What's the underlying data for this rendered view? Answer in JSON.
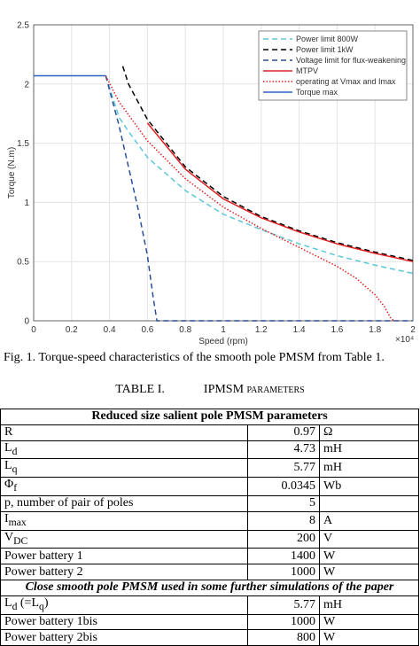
{
  "figure": {
    "ylabel": "Torque (N.m)",
    "xlabel": "Speed (rpm)",
    "x_multiplier": "×10⁴",
    "xlim": [
      0,
      2
    ],
    "ylim": [
      0,
      2.5
    ],
    "xticks": [
      0,
      0.2,
      0.4,
      0.6,
      0.8,
      1,
      1.2,
      1.4,
      1.6,
      1.8,
      2
    ],
    "yticks": [
      0,
      0.5,
      1,
      1.5,
      2,
      2.5
    ],
    "grid": true,
    "series": [
      {
        "name": "Power limit 800W",
        "color": "#5bc8d8",
        "dash": "6,4",
        "x": [
          0.38,
          0.45,
          0.5,
          0.6,
          0.8,
          1.0,
          1.2,
          1.4,
          1.6,
          1.8,
          2.0
        ],
        "values": [
          2.07,
          1.72,
          1.6,
          1.38,
          1.1,
          0.9,
          0.77,
          0.65,
          0.55,
          0.47,
          0.4
        ]
      },
      {
        "name": "Power limit 1kW",
        "color": "#000000",
        "dash": "6,4",
        "x": [
          0.47,
          0.5,
          0.6,
          0.8,
          1.0,
          1.2,
          1.4,
          1.6,
          1.8,
          2.0
        ],
        "values": [
          2.15,
          2.0,
          1.7,
          1.3,
          1.05,
          0.88,
          0.76,
          0.66,
          0.58,
          0.51
        ]
      },
      {
        "name": "Voltage limit for flux-weakening",
        "color": "#2a4f9a",
        "dash": "6,4",
        "x": [
          0.38,
          0.45,
          0.5,
          0.55,
          0.6,
          0.63,
          0.65,
          2.0
        ],
        "values": [
          2.07,
          1.65,
          1.3,
          0.95,
          0.55,
          0.2,
          0,
          0
        ]
      },
      {
        "name": "MTPV",
        "color": "#e02020",
        "dash": "",
        "x": [
          0.6,
          0.8,
          1.0,
          1.2,
          1.4,
          1.6,
          1.8,
          2.0
        ],
        "values": [
          1.67,
          1.28,
          1.03,
          0.87,
          0.75,
          0.65,
          0.57,
          0.5
        ]
      },
      {
        "name": "operating at Vmax and Imax",
        "color": "#e02020",
        "dash": "1.5,2",
        "x": [
          0.38,
          0.45,
          0.6,
          0.8,
          1.0,
          1.2,
          1.4,
          1.6,
          1.7,
          1.8,
          1.85,
          1.88,
          1.9
        ],
        "values": [
          2.07,
          1.85,
          1.52,
          1.2,
          0.96,
          0.78,
          0.62,
          0.46,
          0.36,
          0.22,
          0.12,
          0.03,
          0
        ]
      },
      {
        "name": "Torque max",
        "color": "#2a62c0",
        "dash": "",
        "x": [
          0,
          0.38
        ],
        "values": [
          2.07,
          2.07
        ]
      }
    ]
  },
  "caption": "Fig. 1.   Torque-speed characteristics of the smooth pole PMSM from Table 1.",
  "table_label": "TABLE I.",
  "table_title": "IPMSM parameters",
  "table": {
    "header": "Reduced size salient pole PMSM parameters",
    "rows": [
      {
        "label": [
          "R"
        ],
        "value": "0.97",
        "unit": "Ω"
      },
      {
        "label": [
          "L",
          "d"
        ],
        "value": "4.73",
        "unit": "mH"
      },
      {
        "label": [
          "L",
          "q"
        ],
        "value": "5.77",
        "unit": "mH"
      },
      {
        "label": [
          "Φ",
          "f"
        ],
        "value": "0.0345",
        "unit": "Wb"
      },
      {
        "label": [
          "p, number of pair of poles"
        ],
        "value": "5",
        "unit": ""
      },
      {
        "label": [
          "I",
          "max"
        ],
        "value": "8",
        "unit": "A"
      },
      {
        "label": [
          "V",
          "DC"
        ],
        "value": "200",
        "unit": "V"
      },
      {
        "label": [
          "Power battery 1"
        ],
        "value": "1400",
        "unit": "W"
      },
      {
        "label": [
          "Power battery 2"
        ],
        "value": "1000",
        "unit": "W"
      }
    ],
    "header2": "Close smooth pole PMSM used in some further simulations of the paper",
    "rows2": [
      {
        "label": [
          "L",
          "d",
          " (=L",
          "q",
          ")"
        ],
        "value": "5.77",
        "unit": "mH"
      },
      {
        "label": [
          "Power battery 1bis"
        ],
        "value": "1000",
        "unit": "W"
      },
      {
        "label": [
          "Power battery 2bis"
        ],
        "value": "800",
        "unit": "W"
      }
    ]
  }
}
